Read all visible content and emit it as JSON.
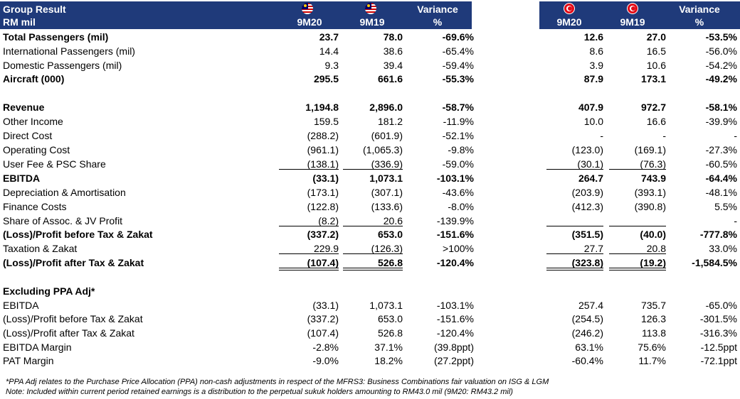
{
  "header": {
    "title_line1": "Group Result",
    "title_line2": "RM mil",
    "my_col1": "9M20",
    "my_col2": "9M19",
    "variance_line1": "Variance",
    "variance_line2": "%",
    "tr_col1": "9M20",
    "tr_col2": "9M19",
    "tr_variance_line1": "Variance",
    "tr_variance_line2": "%",
    "flag_left": "malaysia-flag-icon",
    "flag_right": "turkey-flag-icon",
    "header_color": "#1f3a7a"
  },
  "rows": [
    {
      "label": "Total Passengers (mil)",
      "bold": true,
      "v": [
        "23.7",
        "78.0",
        "-69.6%",
        "12.6",
        "27.0",
        "-53.5%"
      ]
    },
    {
      "label": "International Passengers (mil)",
      "bold": false,
      "v": [
        "14.4",
        "38.6",
        "-65.4%",
        "8.6",
        "16.5",
        "-56.0%"
      ]
    },
    {
      "label": "Domestic Passengers (mil)",
      "bold": false,
      "v": [
        "9.3",
        "39.4",
        "-59.4%",
        "3.9",
        "10.6",
        "-54.2%"
      ]
    },
    {
      "label": "Aircraft (000)",
      "bold": true,
      "v": [
        "295.5",
        "661.6",
        "-55.3%",
        "87.9",
        "173.1",
        "-49.2%"
      ]
    },
    {
      "label": "Revenue",
      "bold": true,
      "v": [
        "1,194.8",
        "2,896.0",
        "-58.7%",
        "407.9",
        "972.7",
        "-58.1%"
      ]
    },
    {
      "label": "Other Income",
      "bold": false,
      "v": [
        "159.5",
        "181.2",
        "-11.9%",
        "10.0",
        "16.6",
        "-39.9%"
      ]
    },
    {
      "label": "Direct Cost",
      "bold": false,
      "v": [
        "(288.2)",
        "(601.9)",
        "-52.1%",
        "-",
        "-",
        "-"
      ]
    },
    {
      "label": "Operating Cost",
      "bold": false,
      "v": [
        "(961.1)",
        "(1,065.3)",
        "-9.8%",
        "(123.0)",
        "(169.1)",
        "-27.3%"
      ]
    },
    {
      "label": "User Fee & PSC Share",
      "bold": false,
      "v": [
        "(138.1)",
        "(336.9)",
        "-59.0%",
        "(30.1)",
        "(76.3)",
        "-60.5%"
      ]
    },
    {
      "label": "EBITDA",
      "bold": true,
      "v": [
        "(33.1)",
        "1,073.1",
        "-103.1%",
        "264.7",
        "743.9",
        "-64.4%"
      ]
    },
    {
      "label": "Depreciation & Amortisation",
      "bold": false,
      "v": [
        "(173.1)",
        "(307.1)",
        "-43.6%",
        "(203.9)",
        "(393.1)",
        "-48.1%"
      ]
    },
    {
      "label": "Finance Costs",
      "bold": false,
      "v": [
        "(122.8)",
        "(133.6)",
        "-8.0%",
        "(412.3)",
        "(390.8)",
        "5.5%"
      ]
    },
    {
      "label": "Share of Assoc. & JV Profit",
      "bold": false,
      "v": [
        "(8.2)",
        "20.6",
        "-139.9%",
        "",
        "",
        "-"
      ]
    },
    {
      "label": "(Loss)/Profit before Tax & Zakat",
      "bold": true,
      "v": [
        "(337.2)",
        "653.0",
        "-151.6%",
        "(351.5)",
        "(40.0)",
        "-777.8%"
      ]
    },
    {
      "label": "Taxation & Zakat",
      "bold": false,
      "v": [
        "229.9",
        "(126.3)",
        ">100%",
        "27.7",
        "20.8",
        "33.0%"
      ]
    },
    {
      "label": "(Loss)/Profit after Tax & Zakat",
      "bold": true,
      "v": [
        "(107.4)",
        "526.8",
        "-120.4%",
        "(323.8)",
        "(19.2)",
        "-1,584.5%"
      ]
    },
    {
      "label": "Excluding PPA Adj*",
      "bold": true,
      "v": [
        "",
        "",
        "",
        "",
        "",
        ""
      ]
    },
    {
      "label": "EBITDA",
      "bold": false,
      "v": [
        "(33.1)",
        "1,073.1",
        "-103.1%",
        "257.4",
        "735.7",
        "-65.0%"
      ]
    },
    {
      "label": "(Loss)/Profit before Tax & Zakat",
      "bold": false,
      "v": [
        "(337.2)",
        "653.0",
        "-151.6%",
        "(254.5)",
        "126.3",
        "-301.5%"
      ]
    },
    {
      "label": "(Loss)/Profit after Tax & Zakat",
      "bold": false,
      "v": [
        "(107.4)",
        "526.8",
        "-120.4%",
        "(246.2)",
        "113.8",
        "-316.3%"
      ]
    },
    {
      "label": "EBITDA Margin",
      "bold": false,
      "v": [
        "-2.8%",
        "37.1%",
        "(39.8ppt)",
        "63.1%",
        "75.6%",
        "-12.5ppt"
      ]
    },
    {
      "label": "PAT Margin",
      "bold": false,
      "v": [
        "-9.0%",
        "18.2%",
        "(27.2ppt)",
        "-60.4%",
        "11.7%",
        "-72.1ppt"
      ]
    }
  ],
  "notes": {
    "line1": "*PPA Adj relates to the Purchase Price Allocation (PPA) non-cash adjustments in respect of the MFRS3: Business Combinations fair valuation on ISG & LGM",
    "line2": "Note: Included within current period retained earnings is a distribution to the perpetual sukuk holders amounting to RM43.0 mil (9M20: RM43.2 mil)"
  }
}
